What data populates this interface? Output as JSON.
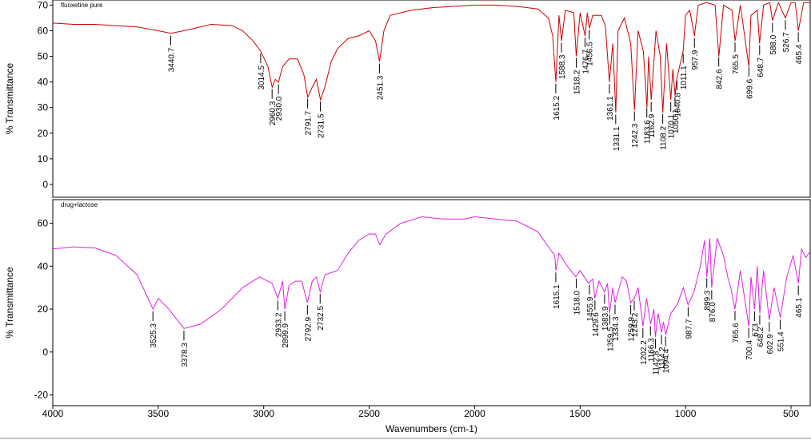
{
  "chart_data": [
    {
      "type": "line",
      "title": "fluoxetine pure",
      "ylabel": "% Transmittance",
      "color": "#cc0000",
      "xlim": [
        4000,
        409
      ],
      "ylim": [
        -5,
        72
      ],
      "yticks": [
        0,
        10,
        20,
        30,
        40,
        50,
        60,
        70
      ],
      "x": [
        4000,
        3900,
        3800,
        3700,
        3600,
        3500,
        3440,
        3350,
        3250,
        3150,
        3100,
        3050,
        3014,
        2980,
        2960,
        2945,
        2930,
        2910,
        2880,
        2840,
        2810,
        2791,
        2770,
        2750,
        2731,
        2710,
        2680,
        2650,
        2600,
        2550,
        2500,
        2470,
        2451,
        2430,
        2400,
        2300,
        2200,
        2100,
        2000,
        1900,
        1800,
        1700,
        1650,
        1630,
        1615,
        1600,
        1588,
        1570,
        1530,
        1518,
        1500,
        1476,
        1466,
        1456,
        1440,
        1400,
        1380,
        1361,
        1345,
        1331,
        1320,
        1290,
        1260,
        1242,
        1225,
        1200,
        1183,
        1175,
        1163,
        1140,
        1120,
        1108,
        1090,
        1070,
        1060,
        1050,
        1040,
        1011,
        1000,
        980,
        958,
        940,
        900,
        860,
        842,
        820,
        780,
        765,
        740,
        700,
        690,
        660,
        649,
        630,
        600,
        588,
        560,
        527,
        500,
        480,
        465,
        440,
        409
      ],
      "values": [
        63,
        62.5,
        62.5,
        62,
        61.5,
        60,
        59,
        60.5,
        62.5,
        62,
        60,
        56,
        52,
        46,
        38,
        41,
        40,
        46,
        49,
        49,
        43,
        34,
        38,
        41,
        33,
        38,
        48,
        53,
        57,
        58,
        60,
        56,
        48,
        60,
        66,
        68,
        69,
        69.5,
        70,
        70,
        69.5,
        68.5,
        65,
        58,
        40,
        66,
        56,
        68,
        67,
        50,
        67,
        58,
        67,
        61,
        66,
        66,
        62,
        40,
        55,
        28,
        60,
        65,
        55,
        29,
        60,
        52,
        30,
        50,
        33,
        60,
        50,
        28,
        55,
        33,
        45,
        35,
        42,
        52,
        66,
        68,
        58,
        70,
        71,
        70,
        50,
        70,
        68,
        56,
        70,
        46,
        66,
        68,
        55,
        70,
        71,
        64,
        71,
        65,
        71,
        71,
        60,
        71,
        71
      ],
      "peaks": [
        3440.7,
        3014.5,
        2960.3,
        {
          "value": 2930,
          "label": "2930.0"
        },
        2791.7,
        2731.5,
        2451.3,
        1615.2,
        1588.3,
        1518.2,
        1476.7,
        1456.5,
        1361.1,
        1331.1,
        1242.3,
        1183.6,
        1162.9,
        1108.2,
        1070.1,
        1050.1,
        1040.8,
        1011.1,
        957.9,
        842.6,
        765.5,
        699.6,
        648.7,
        {
          "value": 588,
          "label": "588.0"
        },
        526.7,
        465.4
      ]
    },
    {
      "type": "line",
      "title": "drug+lactose",
      "ylabel": "% Transmittance",
      "xlabel": "Wavenumbers (cm-1)",
      "color": "#e020e0",
      "xlim": [
        4000,
        409
      ],
      "ylim": [
        -25,
        71
      ],
      "yticks": [
        -20,
        0,
        20,
        40,
        60
      ],
      "xticks": [
        4000,
        3500,
        3000,
        2500,
        2000,
        1500,
        1000,
        500
      ],
      "x": [
        4000,
        3900,
        3800,
        3700,
        3600,
        3525,
        3500,
        3450,
        3378,
        3300,
        3200,
        3100,
        3020,
        2960,
        2933,
        2910,
        2900,
        2880,
        2850,
        2820,
        2793,
        2770,
        2750,
        2732,
        2710,
        2650,
        2600,
        2550,
        2500,
        2470,
        2450,
        2420,
        2350,
        2250,
        2150,
        2050,
        2000,
        1900,
        1800,
        1700,
        1650,
        1620,
        1615,
        1600,
        1560,
        1520,
        1500,
        1460,
        1440,
        1430,
        1410,
        1384,
        1370,
        1360,
        1345,
        1334,
        1300,
        1280,
        1260,
        1243,
        1225,
        1202,
        1185,
        1166,
        1150,
        1143,
        1130,
        1114,
        1105,
        1094,
        1070,
        1040,
        1010,
        988,
        960,
        930,
        910,
        899,
        885,
        876,
        850,
        820,
        800,
        785,
        766,
        740,
        700,
        690,
        673,
        660,
        648,
        630,
        603,
        580,
        551,
        520,
        490,
        465,
        450,
        430,
        409
      ],
      "values": [
        48,
        49,
        48.5,
        45,
        36,
        20,
        25,
        20,
        11,
        13,
        20,
        30,
        35,
        32,
        25,
        33,
        20,
        31,
        33,
        33,
        23,
        33,
        35,
        28,
        36,
        38,
        46,
        52,
        55,
        55,
        50,
        55,
        60,
        63,
        62,
        62,
        63,
        62,
        61,
        56,
        49,
        45,
        38,
        46,
        40,
        35,
        38,
        32,
        34,
        25,
        33,
        28,
        32,
        18,
        30,
        23,
        35,
        33,
        23,
        25,
        30,
        12,
        25,
        13,
        20,
        7,
        18,
        9,
        14,
        8,
        18,
        22,
        30,
        22,
        28,
        40,
        52,
        35,
        53,
        30,
        53,
        45,
        35,
        30,
        20,
        38,
        12,
        35,
        20,
        40,
        18,
        38,
        15,
        30,
        16,
        35,
        45,
        32,
        48,
        44,
        47
      ],
      "peaks": [
        3525.3,
        3378.3,
        2933.2,
        2899.9,
        2792.9,
        2732.5,
        1615.1,
        {
          "value": 1518,
          "label": "1518.0"
        },
        1455.9,
        1429.6,
        1383.9,
        1359.5,
        1334.3,
        1259.9,
        1243.2,
        1202.2,
        1166.3,
        1142.8,
        1114.2,
        1094.4,
        987.7,
        899.3,
        {
          "value": 876,
          "label": "876.0"
        },
        765.6,
        700.4,
        673.0,
        648.2,
        602.9,
        551.4,
        465.1
      ]
    }
  ]
}
